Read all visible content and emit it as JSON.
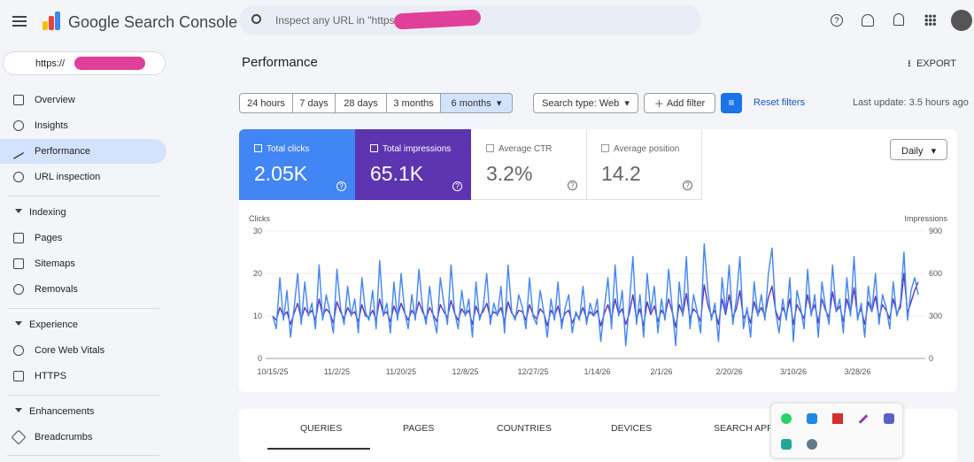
{
  "header": {
    "app_name": "Google Search Console",
    "search_placeholder": "Inspect any URL in \"https"
  },
  "property": "https://",
  "sidebar": {
    "items": [
      "Overview",
      "Insights",
      "Performance",
      "URL inspection"
    ],
    "indexing": {
      "title": "Indexing",
      "items": [
        "Pages",
        "Sitemaps",
        "Removals"
      ]
    },
    "experience": {
      "title": "Experience",
      "items": [
        "Core Web Vitals",
        "HTTPS"
      ]
    },
    "enhancements": {
      "title": "Enhancements",
      "items": [
        "Breadcrumbs"
      ]
    }
  },
  "page_title": "Performance",
  "export": "EXPORT",
  "date_ranges": [
    "24 hours",
    "7 days",
    "28 days",
    "3 months",
    "6 months"
  ],
  "search_type": "Search type: Web",
  "add_filter": "Add filter",
  "reset_filters": "Reset filters",
  "last_update": "Last update: 3.5 hours ago",
  "metrics": [
    {
      "label": "Total clicks",
      "value": "2.05K"
    },
    {
      "label": "Total impressions",
      "value": "65.1K"
    },
    {
      "label": "Average CTR",
      "value": "3.2%"
    },
    {
      "label": "Average position",
      "value": "14.2"
    }
  ],
  "granularity": "Daily",
  "tabs": [
    "QUERIES",
    "PAGES",
    "COUNTRIES",
    "DEVICES",
    "SEARCH APPE"
  ],
  "chart_data": {
    "type": "line",
    "ylabel": "Clicks",
    "y2label": "Impressions",
    "ylim": [
      0,
      30
    ],
    "yticks": [
      0,
      10,
      20,
      30
    ],
    "y2lim": [
      0,
      900
    ],
    "y2ticks": [
      0,
      300,
      600,
      900
    ],
    "categories": [
      "10/15/25",
      null,
      null,
      null,
      null,
      null,
      null,
      null,
      null,
      null,
      null,
      null,
      null,
      null,
      null,
      null,
      null,
      null,
      "11/2/25",
      null,
      null,
      null,
      null,
      null,
      null,
      null,
      null,
      null,
      null,
      null,
      null,
      null,
      null,
      null,
      null,
      null,
      "11/20/25",
      null,
      null,
      null,
      null,
      null,
      null,
      null,
      null,
      null,
      null,
      null,
      null,
      null,
      null,
      null,
      null,
      null,
      "12/8/25",
      null,
      null,
      null,
      null,
      null,
      null,
      null,
      null,
      null,
      null,
      null,
      null,
      null,
      null,
      null,
      null,
      null,
      null,
      "12/27/25",
      null,
      null,
      null,
      null,
      null,
      null,
      null,
      null,
      null,
      null,
      null,
      null,
      null,
      null,
      null,
      null,
      null,
      "1/14/26",
      null,
      null,
      null,
      null,
      null,
      null,
      null,
      null,
      null,
      null,
      null,
      null,
      null,
      null,
      null,
      null,
      null,
      "2/1/26",
      null,
      null,
      null,
      null,
      null,
      null,
      null,
      null,
      null,
      null,
      null,
      null,
      null,
      null,
      null,
      null,
      null,
      null,
      "2/20/26",
      null,
      null,
      null,
      null,
      null,
      null,
      null,
      null,
      null,
      null,
      null,
      null,
      null,
      null,
      null,
      null,
      null,
      "3/10/26",
      null,
      null,
      null,
      null,
      null,
      null,
      null,
      null,
      null,
      null,
      null,
      null,
      null,
      null,
      null,
      null,
      null,
      "3/28/26",
      null,
      null,
      null,
      null,
      null,
      null,
      null,
      null,
      null,
      null,
      null,
      null,
      null,
      null,
      null,
      null,
      null
    ],
    "series": [
      {
        "name": "Clicks",
        "color": "#4285f4",
        "axis": "y",
        "values": [
          10,
          7,
          19,
          9,
          16,
          5,
          12,
          20,
          8,
          18,
          10,
          13,
          7,
          22,
          9,
          15,
          11,
          6,
          21,
          12,
          8,
          17,
          10,
          14,
          6,
          19,
          11,
          9,
          16,
          7,
          23,
          10,
          13,
          6,
          18,
          9,
          20,
          11,
          7,
          15,
          9,
          21,
          12,
          8,
          17,
          10,
          6,
          19,
          13,
          8,
          22,
          11,
          7,
          16,
          10,
          14,
          5,
          18,
          9,
          12,
          20,
          8,
          13,
          10,
          17,
          6,
          22,
          11,
          9,
          15,
          12,
          7,
          19,
          10,
          8,
          16,
          11,
          5,
          14,
          9,
          18,
          7,
          12,
          15,
          6,
          11,
          9,
          17,
          8,
          13,
          10,
          14,
          4,
          12,
          19,
          7,
          22,
          10,
          16,
          3,
          13,
          24,
          8,
          15,
          5,
          20,
          11,
          17,
          6,
          14,
          9,
          21,
          12,
          3,
          18,
          10,
          24,
          7,
          15,
          11,
          6,
          27,
          16,
          9,
          13,
          4,
          19,
          11,
          22,
          8,
          14,
          24,
          7,
          12,
          5,
          18,
          10,
          15,
          9,
          20,
          26,
          11,
          6,
          14,
          9,
          19,
          4,
          16,
          12,
          7,
          21,
          10,
          15,
          5,
          18,
          12,
          8,
          22,
          11,
          14,
          6,
          19,
          10,
          24,
          9,
          13,
          5,
          17,
          11,
          20,
          8,
          15,
          12,
          7,
          18,
          10,
          13,
          25,
          9,
          16,
          19,
          15
        ]
      },
      {
        "name": "Impressions",
        "color": "#5e35b1",
        "axis": "y2",
        "values": [
          300,
          270,
          360,
          300,
          330,
          240,
          320,
          390,
          280,
          360,
          310,
          340,
          270,
          420,
          300,
          350,
          320,
          250,
          400,
          330,
          280,
          360,
          310,
          330,
          260,
          380,
          300,
          290,
          340,
          270,
          420,
          310,
          330,
          260,
          370,
          300,
          390,
          320,
          270,
          340,
          300,
          400,
          330,
          280,
          360,
          310,
          260,
          380,
          330,
          290,
          410,
          320,
          270,
          350,
          310,
          340,
          240,
          370,
          300,
          330,
          390,
          290,
          330,
          310,
          360,
          260,
          400,
          320,
          290,
          340,
          330,
          270,
          380,
          310,
          280,
          350,
          320,
          230,
          340,
          300,
          370,
          260,
          320,
          340,
          250,
          310,
          290,
          360,
          280,
          330,
          300,
          340,
          230,
          320,
          380,
          280,
          420,
          310,
          350,
          240,
          320,
          450,
          280,
          350,
          230,
          400,
          310,
          370,
          260,
          340,
          300,
          420,
          330,
          220,
          380,
          310,
          460,
          280,
          350,
          320,
          260,
          520,
          380,
          300,
          340,
          240,
          420,
          310,
          450,
          290,
          350,
          480,
          280,
          330,
          250,
          400,
          310,
          360,
          300,
          430,
          510,
          340,
          270,
          360,
          300,
          420,
          240,
          380,
          330,
          280,
          450,
          320,
          380,
          250,
          420,
          340,
          290,
          470,
          330,
          370,
          260,
          420,
          320,
          500,
          300,
          350,
          240,
          400,
          330,
          440,
          290,
          380,
          340,
          280,
          420,
          320,
          360,
          600,
          320,
          400,
          480,
          540
        ]
      }
    ]
  }
}
